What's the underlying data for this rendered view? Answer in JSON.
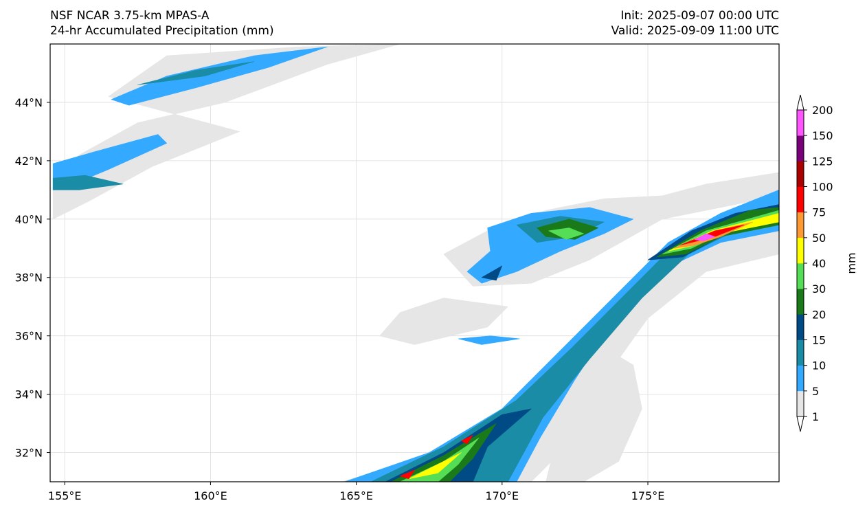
{
  "header": {
    "title_line1": "NSF NCAR 3.75-km MPAS-A",
    "title_line2": "24-hr Accumulated Precipitation (mm)",
    "init": "Init: 2025-09-07 00:00 UTC",
    "valid": "Valid: 2025-09-09 11:00 UTC"
  },
  "map": {
    "lon_range": [
      154.5,
      179.5
    ],
    "lat_range": [
      31.0,
      46.0
    ],
    "lon_ticks": [
      {
        "value": 155,
        "label": "155°E"
      },
      {
        "value": 160,
        "label": "160°E"
      },
      {
        "value": 165,
        "label": "165°E"
      },
      {
        "value": 170,
        "label": "170°E"
      },
      {
        "value": 175,
        "label": "175°E"
      }
    ],
    "lat_ticks": [
      {
        "value": 32,
        "label": "32°N"
      },
      {
        "value": 34,
        "label": "34°N"
      },
      {
        "value": 36,
        "label": "36°N"
      },
      {
        "value": 38,
        "label": "38°N"
      },
      {
        "value": 40,
        "label": "40°N"
      },
      {
        "value": 42,
        "label": "42°N"
      },
      {
        "value": 44,
        "label": "44°N"
      }
    ],
    "gridlines": true
  },
  "colorbar": {
    "unit": "mm",
    "levels": [
      "1",
      "5",
      "10",
      "15",
      "20",
      "30",
      "40",
      "50",
      "75",
      "100",
      "125",
      "150",
      "200"
    ],
    "colors": [
      "#e6e6e6",
      "#33aaff",
      "#1a8ca6",
      "#004a86",
      "#1a7a1a",
      "#55dd55",
      "#ffff00",
      "#ff9933",
      "#ff0000",
      "#aa0000",
      "#7a007a",
      "#ff55ff"
    ]
  },
  "precip_regions": [
    {
      "level": 0,
      "points": [
        [
          156.5,
          44.2
        ],
        [
          158.5,
          45.6
        ],
        [
          163.0,
          45.9
        ],
        [
          166.5,
          46.0
        ],
        [
          164.0,
          45.3
        ],
        [
          160.5,
          44.0
        ],
        [
          157.5,
          43.3
        ],
        [
          155.5,
          42.2
        ],
        [
          154.6,
          41.5
        ],
        [
          154.6,
          40.0
        ],
        [
          155.8,
          40.6
        ],
        [
          158.0,
          41.8
        ],
        [
          161.0,
          43.0
        ]
      ]
    },
    {
      "level": 1,
      "points": [
        [
          156.6,
          44.1
        ],
        [
          158.5,
          44.9
        ],
        [
          161.5,
          45.6
        ],
        [
          164.0,
          45.9
        ],
        [
          162.0,
          45.2
        ],
        [
          159.5,
          44.5
        ],
        [
          157.2,
          43.9
        ]
      ]
    },
    {
      "level": 2,
      "points": [
        [
          157.5,
          44.6
        ],
        [
          159.5,
          45.1
        ],
        [
          161.5,
          45.4
        ],
        [
          159.8,
          44.9
        ]
      ]
    },
    {
      "level": 1,
      "points": [
        [
          154.6,
          41.9
        ],
        [
          156.0,
          42.3
        ],
        [
          158.2,
          42.9
        ],
        [
          158.5,
          42.6
        ],
        [
          156.5,
          41.7
        ],
        [
          155.3,
          41.2
        ],
        [
          154.6,
          41.0
        ]
      ]
    },
    {
      "level": 2,
      "points": [
        [
          154.6,
          41.4
        ],
        [
          155.7,
          41.5
        ],
        [
          157.0,
          41.2
        ],
        [
          155.5,
          41.0
        ],
        [
          154.6,
          41.0
        ]
      ]
    },
    {
      "level": 0,
      "points": [
        [
          168.0,
          38.8
        ],
        [
          169.5,
          39.6
        ],
        [
          171.5,
          40.3
        ],
        [
          173.5,
          40.7
        ],
        [
          175.5,
          40.8
        ],
        [
          177.0,
          41.2
        ],
        [
          179.5,
          41.6
        ],
        [
          179.5,
          40.8
        ],
        [
          177.0,
          40.3
        ],
        [
          175.5,
          40.0
        ],
        [
          173.0,
          38.6
        ],
        [
          171.0,
          37.8
        ],
        [
          169.0,
          37.7
        ]
      ]
    },
    {
      "level": 1,
      "points": [
        [
          169.5,
          39.7
        ],
        [
          171.0,
          40.2
        ],
        [
          173.0,
          40.4
        ],
        [
          174.5,
          40.0
        ],
        [
          173.5,
          39.5
        ],
        [
          172.0,
          38.9
        ],
        [
          170.5,
          38.2
        ],
        [
          169.3,
          37.8
        ],
        [
          168.8,
          38.2
        ],
        [
          169.6,
          38.9
        ]
      ]
    },
    {
      "level": 2,
      "points": [
        [
          170.5,
          39.8
        ],
        [
          172.0,
          40.1
        ],
        [
          173.5,
          39.9
        ],
        [
          172.5,
          39.4
        ],
        [
          171.2,
          39.2
        ]
      ]
    },
    {
      "level": 4,
      "points": [
        [
          171.2,
          39.7
        ],
        [
          172.3,
          40.0
        ],
        [
          173.3,
          39.7
        ],
        [
          172.5,
          39.3
        ],
        [
          171.5,
          39.4
        ]
      ]
    },
    {
      "level": 5,
      "points": [
        [
          171.6,
          39.6
        ],
        [
          172.3,
          39.7
        ],
        [
          172.8,
          39.5
        ],
        [
          172.2,
          39.3
        ]
      ]
    },
    {
      "level": 3,
      "points": [
        [
          169.3,
          38.0
        ],
        [
          170.0,
          38.4
        ],
        [
          169.8,
          37.9
        ]
      ]
    },
    {
      "level": 0,
      "points": [
        [
          166.5,
          36.8
        ],
        [
          168.0,
          37.3
        ],
        [
          170.2,
          37.0
        ],
        [
          169.5,
          36.3
        ],
        [
          167.0,
          35.7
        ],
        [
          165.8,
          36.0
        ]
      ]
    },
    {
      "level": 1,
      "points": [
        [
          168.5,
          35.9
        ],
        [
          169.6,
          36.0
        ],
        [
          170.6,
          35.9
        ],
        [
          169.3,
          35.7
        ]
      ]
    },
    {
      "level": 0,
      "points": [
        [
          172.5,
          35.5
        ],
        [
          173.5,
          35.6
        ],
        [
          174.5,
          35.0
        ],
        [
          174.8,
          33.5
        ],
        [
          174.0,
          31.7
        ],
        [
          172.8,
          31.0
        ],
        [
          171.5,
          31.0
        ],
        [
          172.0,
          33.0
        ]
      ]
    },
    {
      "level": 0,
      "points": [
        [
          164.5,
          31.0
        ],
        [
          168.0,
          32.0
        ],
        [
          170.5,
          33.5
        ],
        [
          172.5,
          35.0
        ],
        [
          174.5,
          37.0
        ],
        [
          176.0,
          38.5
        ],
        [
          178.0,
          40.0
        ],
        [
          179.5,
          40.8
        ],
        [
          179.5,
          38.8
        ],
        [
          177.0,
          38.2
        ],
        [
          175.0,
          36.6
        ],
        [
          173.5,
          34.5
        ],
        [
          172.0,
          32.0
        ],
        [
          171.0,
          31.0
        ]
      ]
    },
    {
      "level": 1,
      "points": [
        [
          164.6,
          31.0
        ],
        [
          167.5,
          32.0
        ],
        [
          170.0,
          33.5
        ],
        [
          172.0,
          35.5
        ],
        [
          174.0,
          37.5
        ],
        [
          175.7,
          39.2
        ],
        [
          177.5,
          40.2
        ],
        [
          179.5,
          41.0
        ],
        [
          179.5,
          39.6
        ],
        [
          177.5,
          39.2
        ],
        [
          176.0,
          38.5
        ],
        [
          174.0,
          36.8
        ],
        [
          172.5,
          34.5
        ],
        [
          171.3,
          32.5
        ],
        [
          170.5,
          31.0
        ]
      ]
    },
    {
      "level": 2,
      "points": [
        [
          165.5,
          31.0
        ],
        [
          168.0,
          32.2
        ],
        [
          170.5,
          33.8
        ],
        [
          172.4,
          35.6
        ],
        [
          174.4,
          37.6
        ],
        [
          176.2,
          39.4
        ],
        [
          178.0,
          40.1
        ],
        [
          179.5,
          40.5
        ],
        [
          179.5,
          39.9
        ],
        [
          177.8,
          39.5
        ],
        [
          176.4,
          38.8
        ],
        [
          174.8,
          37.3
        ],
        [
          173.0,
          35.2
        ],
        [
          171.4,
          33.2
        ],
        [
          170.2,
          31.0
        ]
      ]
    },
    {
      "level": 3,
      "points": [
        [
          166.0,
          31.0
        ],
        [
          168.0,
          32.0
        ],
        [
          170.0,
          33.3
        ],
        [
          171.0,
          33.5
        ],
        [
          169.5,
          32.2
        ],
        [
          169.0,
          31.0
        ]
      ]
    },
    {
      "level": 3,
      "points": [
        [
          175.0,
          38.6
        ],
        [
          176.5,
          39.6
        ],
        [
          178.0,
          40.2
        ],
        [
          179.5,
          40.5
        ],
        [
          179.5,
          39.9
        ],
        [
          177.5,
          39.4
        ],
        [
          176.2,
          38.7
        ]
      ]
    },
    {
      "level": 4,
      "points": [
        [
          166.2,
          31.0
        ],
        [
          168.0,
          31.9
        ],
        [
          169.8,
          33.0
        ],
        [
          169.0,
          31.8
        ],
        [
          168.2,
          31.0
        ]
      ]
    },
    {
      "level": 4,
      "points": [
        [
          175.3,
          38.7
        ],
        [
          176.8,
          39.6
        ],
        [
          178.5,
          40.3
        ],
        [
          179.5,
          40.4
        ],
        [
          179.5,
          39.8
        ],
        [
          177.5,
          39.4
        ],
        [
          176.3,
          38.8
        ]
      ]
    },
    {
      "level": 5,
      "points": [
        [
          166.5,
          31.0
        ],
        [
          168.0,
          31.7
        ],
        [
          169.2,
          32.5
        ],
        [
          168.5,
          31.6
        ],
        [
          167.8,
          31.0
        ]
      ]
    },
    {
      "level": 5,
      "points": [
        [
          175.5,
          38.8
        ],
        [
          177.0,
          39.6
        ],
        [
          179.5,
          40.3
        ],
        [
          179.5,
          39.9
        ],
        [
          177.5,
          39.5
        ],
        [
          176.5,
          39.0
        ]
      ]
    },
    {
      "level": 6,
      "points": [
        [
          166.8,
          31.1
        ],
        [
          167.8,
          31.6
        ],
        [
          168.6,
          32.0
        ],
        [
          167.8,
          31.3
        ]
      ]
    },
    {
      "level": 6,
      "points": [
        [
          175.7,
          38.9
        ],
        [
          177.2,
          39.6
        ],
        [
          179.5,
          40.2
        ],
        [
          179.5,
          39.9
        ],
        [
          177.5,
          39.5
        ],
        [
          176.6,
          39.1
        ]
      ]
    },
    {
      "level": 7,
      "points": [
        [
          175.9,
          39.0
        ],
        [
          177.3,
          39.6
        ],
        [
          178.6,
          39.9
        ],
        [
          177.5,
          39.4
        ],
        [
          176.6,
          39.1
        ]
      ]
    },
    {
      "level": 8,
      "points": [
        [
          176.1,
          39.1
        ],
        [
          177.3,
          39.6
        ],
        [
          178.3,
          39.8
        ],
        [
          177.3,
          39.4
        ]
      ]
    },
    {
      "level": 8,
      "points": [
        [
          166.5,
          31.2
        ],
        [
          167.0,
          31.4
        ],
        [
          166.8,
          31.1
        ]
      ]
    },
    {
      "level": 8,
      "points": [
        [
          168.6,
          32.4
        ],
        [
          169.0,
          32.6
        ],
        [
          168.8,
          32.3
        ]
      ]
    },
    {
      "level": 11,
      "points": [
        [
          176.6,
          39.3
        ],
        [
          177.0,
          39.5
        ],
        [
          177.3,
          39.4
        ],
        [
          176.9,
          39.25
        ]
      ]
    }
  ]
}
